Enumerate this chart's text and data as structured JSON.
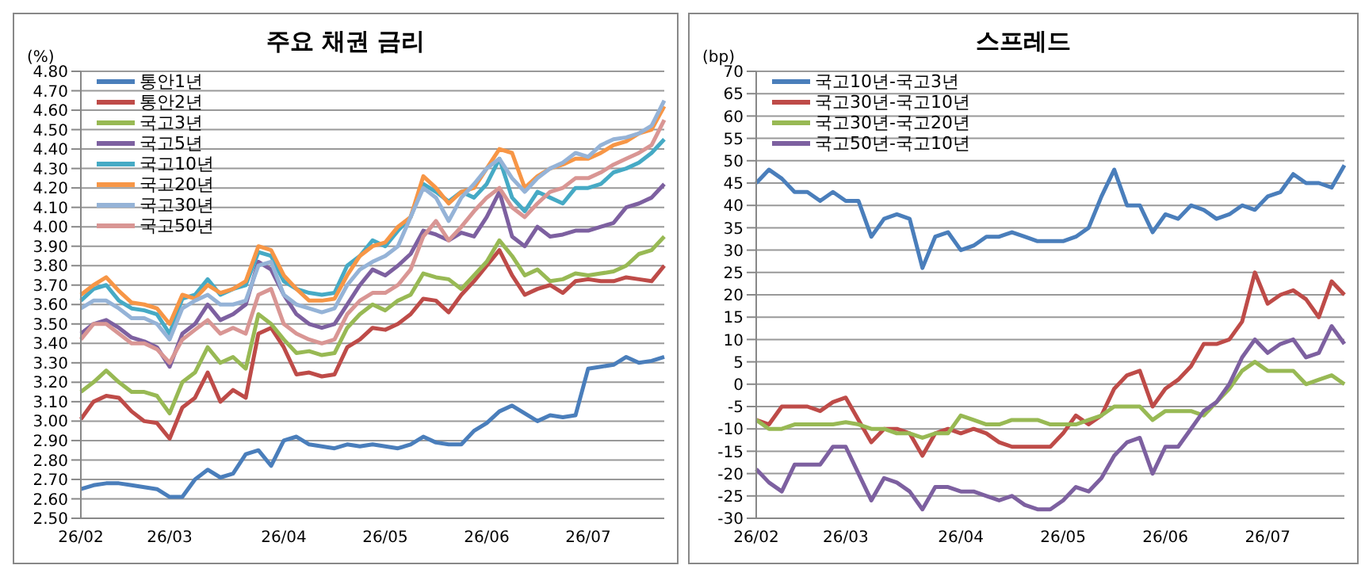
{
  "chart_data": [
    {
      "type": "line",
      "title": "주요 채권 금리",
      "ylabel": "(%)",
      "grid": "y",
      "legend": "top left",
      "marker": "none",
      "categories": [
        "26/02",
        null,
        null,
        null,
        null,
        null,
        null,
        "26/03",
        null,
        null,
        null,
        null,
        null,
        null,
        null,
        null,
        "26/04",
        null,
        null,
        null,
        null,
        null,
        null,
        null,
        "26/05",
        null,
        null,
        null,
        null,
        null,
        null,
        null,
        "26/06",
        null,
        null,
        null,
        null,
        null,
        null,
        null,
        "26/07",
        null,
        null,
        null,
        null,
        null,
        null
      ],
      "ylim": [
        2.5,
        4.8
      ],
      "yticks": [
        {
          "value": 2.5,
          "label": "2.50"
        },
        {
          "value": 2.6,
          "label": "2.60"
        },
        {
          "value": 2.7,
          "label": "2.70"
        },
        {
          "value": 2.8,
          "label": "2.80"
        },
        {
          "value": 2.9,
          "label": "2.90"
        },
        {
          "value": 3.0,
          "label": "3.00"
        },
        {
          "value": 3.1,
          "label": "3.10"
        },
        {
          "value": 3.2,
          "label": "3.20"
        },
        {
          "value": 3.3,
          "label": "3.30"
        },
        {
          "value": 3.4,
          "label": "3.40"
        },
        {
          "value": 3.5,
          "label": "3.50"
        },
        {
          "value": 3.6,
          "label": "3.60"
        },
        {
          "value": 3.7,
          "label": "3.70"
        },
        {
          "value": 3.8,
          "label": "3.80"
        },
        {
          "value": 3.9,
          "label": "3.90"
        },
        {
          "value": 4.0,
          "label": "4.00"
        },
        {
          "value": 4.1,
          "label": "4.10"
        },
        {
          "value": 4.2,
          "label": "4.20"
        },
        {
          "value": 4.3,
          "label": "4.30"
        },
        {
          "value": 4.4,
          "label": "4.40"
        },
        {
          "value": 4.5,
          "label": "4.50"
        },
        {
          "value": 4.6,
          "label": "4.60"
        },
        {
          "value": 4.7,
          "label": "4.70"
        },
        {
          "value": 4.8,
          "label": "4.80"
        }
      ],
      "series": [
        {
          "name": "통안1년",
          "color": "#4a7ebb",
          "values": [
            2.65,
            2.67,
            2.68,
            2.68,
            2.67,
            2.66,
            2.65,
            2.61,
            2.61,
            2.7,
            2.75,
            2.71,
            2.73,
            2.83,
            2.85,
            2.77,
            2.9,
            2.92,
            2.88,
            2.87,
            2.86,
            2.88,
            2.87,
            2.88,
            2.87,
            2.86,
            2.88,
            2.92,
            2.89,
            2.88,
            2.88,
            2.95,
            2.99,
            3.05,
            3.08,
            3.04,
            3.0,
            3.03,
            3.02,
            3.03,
            3.27,
            3.28,
            3.29,
            3.33,
            3.3,
            3.31,
            3.33
          ]
        },
        {
          "name": "통안2년",
          "color": "#be4b48",
          "values": [
            3.01,
            3.1,
            3.13,
            3.12,
            3.05,
            3.0,
            2.99,
            2.91,
            3.07,
            3.12,
            3.25,
            3.1,
            3.16,
            3.12,
            3.45,
            3.48,
            3.38,
            3.24,
            3.25,
            3.23,
            3.24,
            3.38,
            3.42,
            3.48,
            3.47,
            3.5,
            3.55,
            3.63,
            3.62,
            3.56,
            3.65,
            3.72,
            3.8,
            3.88,
            3.75,
            3.65,
            3.68,
            3.7,
            3.66,
            3.72,
            3.73,
            3.72,
            3.72,
            3.74,
            3.73,
            3.72,
            3.8
          ]
        },
        {
          "name": "국고3년",
          "color": "#98b954",
          "values": [
            3.15,
            3.2,
            3.26,
            3.2,
            3.15,
            3.15,
            3.13,
            3.04,
            3.2,
            3.25,
            3.38,
            3.3,
            3.33,
            3.27,
            3.55,
            3.5,
            3.42,
            3.35,
            3.36,
            3.34,
            3.35,
            3.48,
            3.55,
            3.6,
            3.57,
            3.62,
            3.65,
            3.76,
            3.74,
            3.73,
            3.68,
            3.75,
            3.82,
            3.93,
            3.85,
            3.75,
            3.78,
            3.72,
            3.73,
            3.76,
            3.75,
            3.76,
            3.77,
            3.8,
            3.86,
            3.88,
            3.95
          ]
        },
        {
          "name": "국고5년",
          "color": "#7d60a0",
          "values": [
            3.45,
            3.5,
            3.52,
            3.48,
            3.43,
            3.41,
            3.38,
            3.28,
            3.45,
            3.5,
            3.6,
            3.52,
            3.55,
            3.6,
            3.82,
            3.78,
            3.65,
            3.55,
            3.5,
            3.48,
            3.5,
            3.6,
            3.7,
            3.78,
            3.75,
            3.8,
            3.86,
            3.98,
            3.96,
            3.93,
            3.97,
            3.95,
            4.05,
            4.18,
            3.95,
            3.9,
            4.0,
            3.95,
            3.96,
            3.98,
            3.98,
            4.0,
            4.02,
            4.1,
            4.12,
            4.15,
            4.22
          ]
        },
        {
          "name": "국고10년",
          "color": "#46aac5",
          "values": [
            3.62,
            3.68,
            3.7,
            3.62,
            3.58,
            3.57,
            3.55,
            3.45,
            3.63,
            3.65,
            3.73,
            3.65,
            3.68,
            3.7,
            3.87,
            3.85,
            3.72,
            3.68,
            3.66,
            3.65,
            3.66,
            3.8,
            3.85,
            3.93,
            3.9,
            3.98,
            4.05,
            4.22,
            4.18,
            4.13,
            4.18,
            4.15,
            4.22,
            4.35,
            4.15,
            4.08,
            4.18,
            4.15,
            4.12,
            4.2,
            4.2,
            4.22,
            4.28,
            4.3,
            4.33,
            4.38,
            4.45
          ]
        },
        {
          "name": "국고20년",
          "color": "#f79646",
          "values": [
            3.65,
            3.7,
            3.74,
            3.67,
            3.61,
            3.6,
            3.58,
            3.5,
            3.65,
            3.63,
            3.7,
            3.66,
            3.68,
            3.72,
            3.9,
            3.88,
            3.75,
            3.68,
            3.62,
            3.62,
            3.63,
            3.75,
            3.85,
            3.9,
            3.92,
            4.0,
            4.05,
            4.26,
            4.2,
            4.12,
            4.18,
            4.2,
            4.3,
            4.4,
            4.38,
            4.2,
            4.26,
            4.3,
            4.32,
            4.35,
            4.35,
            4.38,
            4.42,
            4.44,
            4.48,
            4.5,
            4.62
          ]
        },
        {
          "name": "국고30년",
          "color": "#95b3d7",
          "values": [
            3.58,
            3.62,
            3.62,
            3.58,
            3.53,
            3.53,
            3.5,
            3.42,
            3.58,
            3.62,
            3.65,
            3.6,
            3.6,
            3.62,
            3.8,
            3.82,
            3.65,
            3.6,
            3.58,
            3.56,
            3.58,
            3.7,
            3.78,
            3.82,
            3.85,
            3.9,
            4.05,
            4.2,
            4.15,
            4.03,
            4.15,
            4.22,
            4.3,
            4.35,
            4.25,
            4.18,
            4.25,
            4.3,
            4.33,
            4.38,
            4.36,
            4.42,
            4.45,
            4.46,
            4.48,
            4.52,
            4.65
          ]
        },
        {
          "name": "국고50년",
          "color": "#d99694",
          "values": [
            3.42,
            3.5,
            3.5,
            3.45,
            3.4,
            3.4,
            3.37,
            3.3,
            3.42,
            3.47,
            3.52,
            3.45,
            3.48,
            3.45,
            3.65,
            3.68,
            3.5,
            3.45,
            3.42,
            3.4,
            3.42,
            3.55,
            3.62,
            3.66,
            3.66,
            3.7,
            3.78,
            3.95,
            4.03,
            3.93,
            4.0,
            4.08,
            4.15,
            4.2,
            4.1,
            4.05,
            4.12,
            4.18,
            4.2,
            4.25,
            4.25,
            4.28,
            4.32,
            4.35,
            4.38,
            4.42,
            4.55
          ]
        }
      ]
    },
    {
      "type": "line",
      "title": "스프레드",
      "ylabel": "(bp)",
      "grid": "y",
      "legend": "top left",
      "marker": "none",
      "categories": [
        "26/02",
        null,
        null,
        null,
        null,
        null,
        null,
        "26/03",
        null,
        null,
        null,
        null,
        null,
        null,
        null,
        null,
        "26/04",
        null,
        null,
        null,
        null,
        null,
        null,
        null,
        "26/05",
        null,
        null,
        null,
        null,
        null,
        null,
        null,
        "26/06",
        null,
        null,
        null,
        null,
        null,
        null,
        null,
        "26/07",
        null,
        null,
        null,
        null,
        null,
        null
      ],
      "ylim": [
        -30,
        70
      ],
      "yticks": [
        -30,
        -25,
        -20,
        -15,
        -10,
        -5,
        0,
        5,
        10,
        15,
        20,
        25,
        30,
        35,
        40,
        45,
        50,
        55,
        60,
        65,
        70
      ],
      "series": [
        {
          "name": "국고10년-국고3년",
          "color": "#4a7ebb",
          "values": [
            45,
            48,
            46,
            43,
            43,
            41,
            43,
            41,
            41,
            33,
            37,
            38,
            37,
            26,
            33,
            34,
            30,
            31,
            33,
            33,
            34,
            33,
            32,
            32,
            32,
            33,
            35,
            42,
            48,
            40,
            40,
            34,
            38,
            37,
            40,
            39,
            37,
            38,
            40,
            39,
            42,
            43,
            47,
            45,
            45,
            44,
            49
          ]
        },
        {
          "name": "국고30년-국고10년",
          "color": "#be4b48",
          "values": [
            -8,
            -9,
            -5,
            -5,
            -5,
            -6,
            -4,
            -3,
            -8,
            -13,
            -10,
            -10,
            -11,
            -16,
            -11,
            -10,
            -11,
            -10,
            -11,
            -13,
            -14,
            -14,
            -14,
            -14,
            -11,
            -7,
            -9,
            -7,
            -1,
            2,
            3,
            -5,
            -1,
            1,
            4,
            9,
            9,
            10,
            14,
            25,
            18,
            20,
            21,
            19,
            15,
            23,
            20
          ]
        },
        {
          "name": "국고30년-국고20년",
          "color": "#98b954",
          "values": [
            -8,
            -10,
            -10,
            -9,
            -9,
            -9,
            -9,
            -8.5,
            -9,
            -10,
            -10,
            -11,
            -11,
            -12,
            -11,
            -11,
            -7,
            -8,
            -9,
            -9,
            -8,
            -8,
            -8,
            -9,
            -9,
            -9,
            -8,
            -7,
            -5,
            -5,
            -5,
            -8,
            -6,
            -6,
            -6,
            -7,
            -4,
            -1,
            3,
            5,
            3,
            3,
            3,
            0,
            1,
            2,
            0
          ]
        },
        {
          "name": "국고50년-국고10년",
          "color": "#7d60a0",
          "values": [
            -19,
            -22,
            -24,
            -18,
            -18,
            -18,
            -14,
            -14,
            -20,
            -26,
            -21,
            -22,
            -24,
            -28,
            -23,
            -23,
            -24,
            -24,
            -25,
            -26,
            -25,
            -27,
            -28,
            -28,
            -26,
            -23,
            -24,
            -21,
            -16,
            -13,
            -12,
            -20,
            -14,
            -14,
            -10,
            -6,
            -4,
            0,
            6,
            10,
            7,
            9,
            10,
            6,
            7,
            13,
            9
          ]
        }
      ]
    }
  ]
}
